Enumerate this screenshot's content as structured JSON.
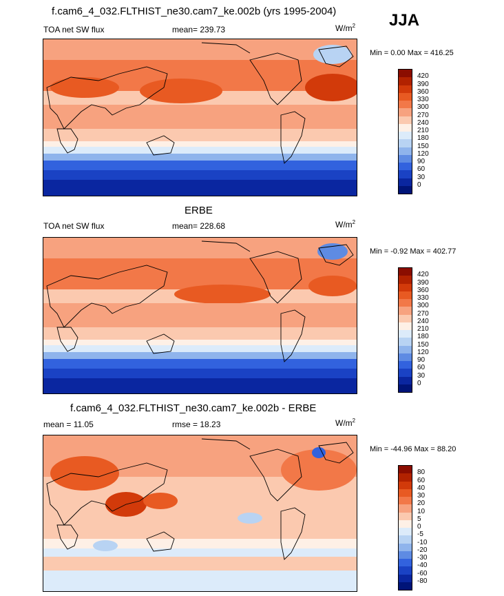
{
  "season": "JJA",
  "panels": [
    {
      "title": "f.cam6_4_032.FLTHIST_ne30.cam7_ke.002b (yrs 1995-2004)",
      "left_label": "TOA net SW flux",
      "center_label": "mean= 239.73",
      "unit_base": "W/m",
      "unit_exp": "2",
      "minmax": "Min =   0.00 Max = 416.25",
      "colorbar_levels": [
        "420",
        "390",
        "360",
        "330",
        "300",
        "270",
        "240",
        "210",
        "180",
        "150",
        "120",
        "90",
        "60",
        "30",
        "0"
      ],
      "colorbar_colors": [
        "#8b0d00",
        "#b22200",
        "#d23a0a",
        "#e85a22",
        "#f27848",
        "#f7a27f",
        "#fbc9af",
        "#fef0e6",
        "#dcebfa",
        "#b8d3f3",
        "#8fb4ec",
        "#5e8be3",
        "#3262de",
        "#1a42c4",
        "#0a26a0",
        "#001478"
      ]
    },
    {
      "title": "ERBE",
      "left_label": "TOA net SW flux",
      "center_label": "mean= 228.68",
      "unit_base": "W/m",
      "unit_exp": "2",
      "minmax": "Min =  -0.92 Max = 402.77",
      "colorbar_levels": [
        "420",
        "390",
        "360",
        "330",
        "300",
        "270",
        "240",
        "210",
        "180",
        "150",
        "120",
        "90",
        "60",
        "30",
        "0"
      ],
      "colorbar_colors": [
        "#8b0d00",
        "#b22200",
        "#d23a0a",
        "#e85a22",
        "#f27848",
        "#f7a27f",
        "#fbc9af",
        "#fef0e6",
        "#dcebfa",
        "#b8d3f3",
        "#8fb4ec",
        "#5e8be3",
        "#3262de",
        "#1a42c4",
        "#0a26a0",
        "#001478"
      ]
    },
    {
      "title": "f.cam6_4_032.FLTHIST_ne30.cam7_ke.002b - ERBE",
      "left_label": "mean =  11.05",
      "center_label": "rmse =  18.23",
      "unit_base": "W/m",
      "unit_exp": "2",
      "minmax": "Min = -44.96 Max =  88.20",
      "colorbar_levels": [
        "80",
        "60",
        "40",
        "30",
        "20",
        "10",
        "5",
        "0",
        "-5",
        "-10",
        "-20",
        "-30",
        "-40",
        "-60",
        "-80"
      ],
      "colorbar_colors": [
        "#8b0d00",
        "#b22200",
        "#d23a0a",
        "#e85a22",
        "#f27848",
        "#f7a27f",
        "#fbc9af",
        "#fef0e6",
        "#dcebfa",
        "#b8d3f3",
        "#8fb4ec",
        "#5e8be3",
        "#3262de",
        "#1a42c4",
        "#0a26a0",
        "#001478"
      ]
    }
  ]
}
